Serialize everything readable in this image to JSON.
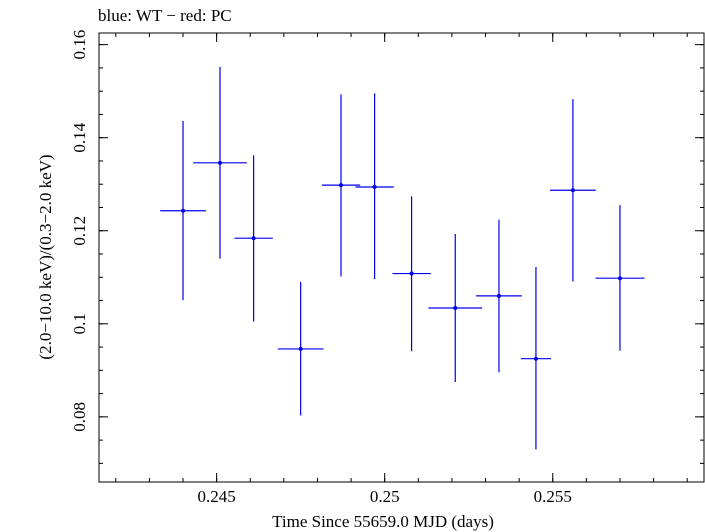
{
  "chart_data": {
    "type": "scatter",
    "title": "blue: WT − red: PC",
    "xlabel": "Time Since 55659.0 MJD (days)",
    "ylabel": "(2.0−10.0 keV)/(0.3−2.0 keV)",
    "xlim": [
      0.2415,
      0.2595
    ],
    "ylim": [
      0.066,
      0.1625
    ],
    "x_ticks": [
      {
        "value": 0.245,
        "label": "0.245"
      },
      {
        "value": 0.25,
        "label": "0.25"
      },
      {
        "value": 0.255,
        "label": "0.255"
      }
    ],
    "y_ticks": [
      {
        "value": 0.08,
        "label": "0.08"
      },
      {
        "value": 0.1,
        "label": "0.1"
      },
      {
        "value": 0.12,
        "label": "0.12"
      },
      {
        "value": 0.14,
        "label": "0.14"
      },
      {
        "value": 0.16,
        "label": "0.16"
      }
    ],
    "x_minor_step": 0.001,
    "y_minor_step": 0.005,
    "grid": false,
    "series": [
      {
        "color": "#0000ee",
        "points": [
          {
            "x": 0.244,
            "xerr": 0.00068,
            "y": 0.1243,
            "yerr_low": 0.0192,
            "yerr_high": 0.0193
          },
          {
            "x": 0.2451,
            "xerr": 0.0008,
            "y": 0.1346,
            "yerr_low": 0.0206,
            "yerr_high": 0.0206
          },
          {
            "x": 0.2461,
            "xerr": 0.00057,
            "y": 0.1184,
            "yerr_low": 0.0179,
            "yerr_high": 0.0178
          },
          {
            "x": 0.2475,
            "xerr": 0.00068,
            "y": 0.0946,
            "yerr_low": 0.0143,
            "yerr_high": 0.0144
          },
          {
            "x": 0.2487,
            "xerr": 0.00057,
            "y": 0.1298,
            "yerr_low": 0.0196,
            "yerr_high": 0.0195
          },
          {
            "x": 0.2497,
            "xerr": 0.00057,
            "y": 0.1294,
            "yerr_low": 0.0198,
            "yerr_high": 0.0201
          },
          {
            "x": 0.2508,
            "xerr": 0.00057,
            "y": 0.1108,
            "yerr_low": 0.0167,
            "yerr_high": 0.0166
          },
          {
            "x": 0.2521,
            "xerr": 0.0008,
            "y": 0.1034,
            "yerr_low": 0.0159,
            "yerr_high": 0.0159
          },
          {
            "x": 0.2534,
            "xerr": 0.00068,
            "y": 0.106,
            "yerr_low": 0.0164,
            "yerr_high": 0.0164
          },
          {
            "x": 0.2545,
            "xerr": 0.00045,
            "y": 0.0925,
            "yerr_low": 0.0195,
            "yerr_high": 0.0197
          },
          {
            "x": 0.2556,
            "xerr": 0.00068,
            "y": 0.1287,
            "yerr_low": 0.0196,
            "yerr_high": 0.0196
          },
          {
            "x": 0.257,
            "xerr": 0.00073,
            "y": 0.1098,
            "yerr_low": 0.0156,
            "yerr_high": 0.0157
          }
        ]
      }
    ]
  }
}
